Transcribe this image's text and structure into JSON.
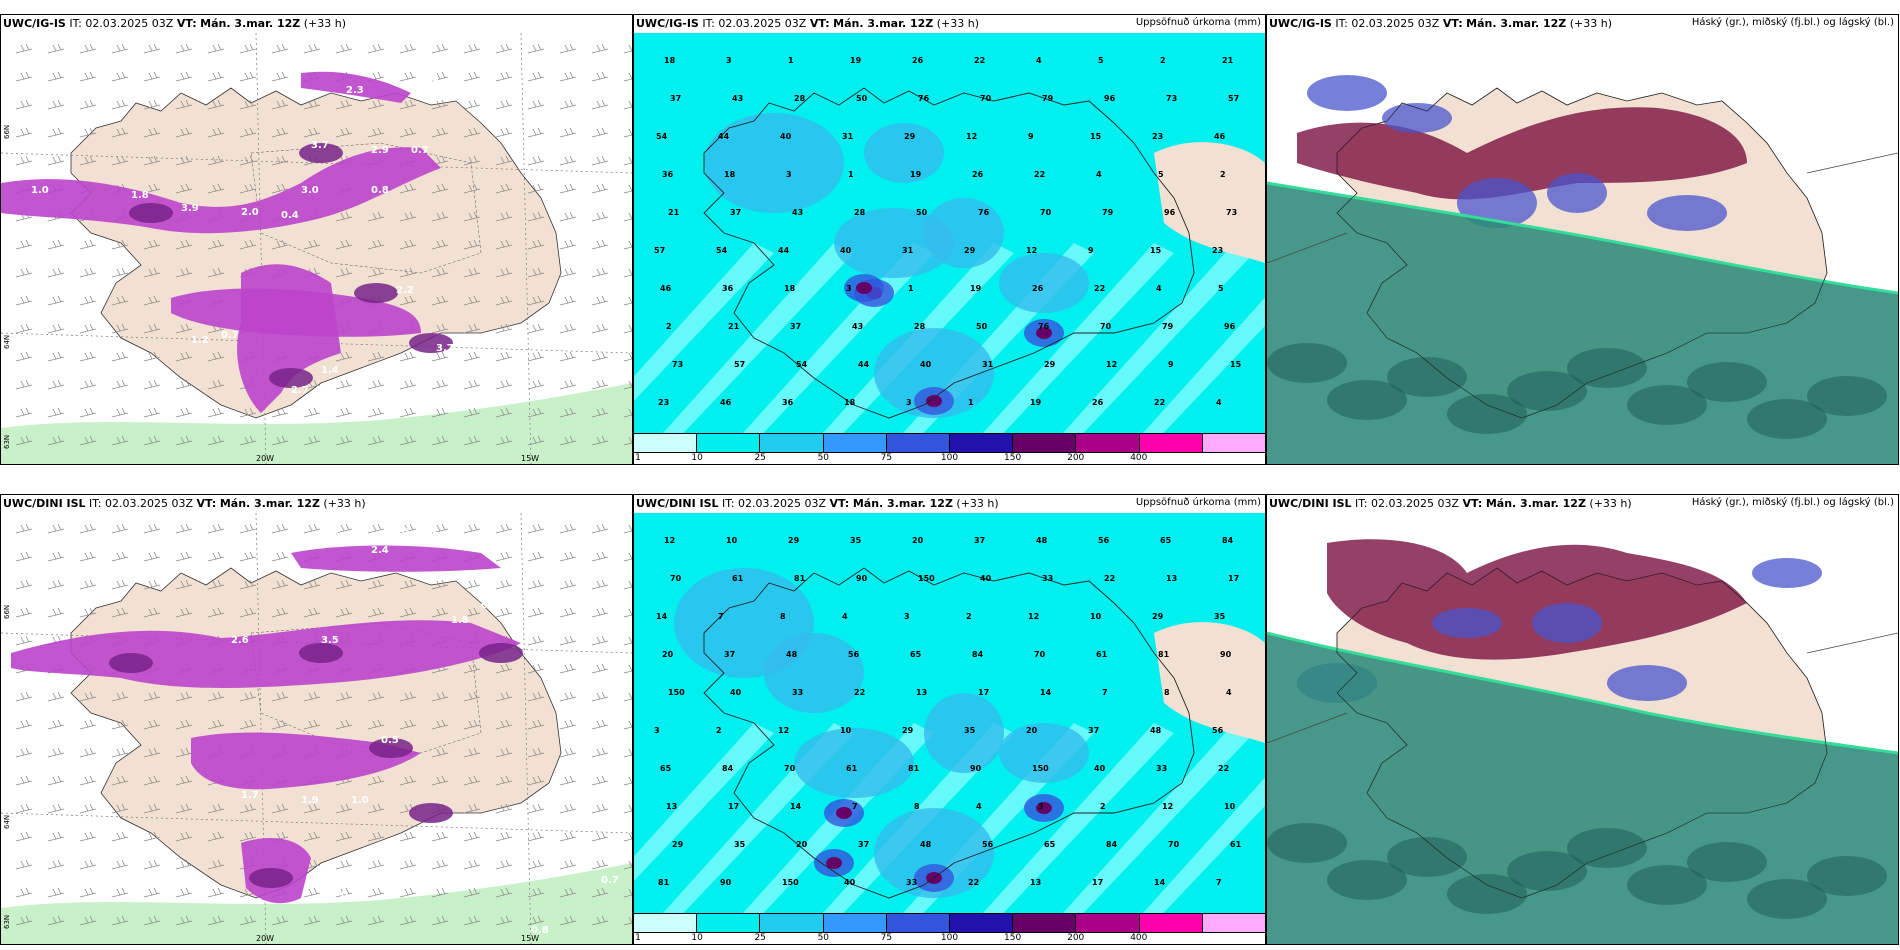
{
  "panels": [
    {
      "id": "p1",
      "model": "UWC/IG-IS",
      "it": "IT: 02.03.2025 03Z",
      "vt_label": "VT:",
      "vt": "Mán. 3.mar. 12Z",
      "lead": "(+33 h)",
      "right": "",
      "labels": [
        "0.3",
        "2.3",
        "2.9",
        "0.7",
        "3.7",
        "3.9",
        "2.0",
        "0.4",
        "2.2",
        "3.7",
        "1.4",
        "2.7",
        "1.8",
        "1.2",
        "0.7",
        "1.0",
        "3.0",
        "0.8"
      ]
    },
    {
      "id": "p2",
      "model": "UWC/IG-IS",
      "it": "IT: 02.03.2025 03Z",
      "vt_label": "VT:",
      "vt": "Mán. 3.mar. 12Z",
      "lead": "(+33 h)",
      "right": "Uppsöfnuð úrkoma (mm)",
      "labels": [
        "18",
        "3",
        "1",
        "19",
        "26",
        "22",
        "4",
        "5",
        "2",
        "21",
        "37",
        "43",
        "28",
        "50",
        "76",
        "70",
        "79",
        "96",
        "73",
        "57",
        "54",
        "44",
        "40",
        "31",
        "29",
        "12",
        "9",
        "15",
        "23",
        "46",
        "36"
      ]
    },
    {
      "id": "p3",
      "model": "UWC/IG-IS",
      "it": "IT: 02.03.2025 03Z",
      "vt_label": "VT:",
      "vt": "Mán. 3.mar. 12Z",
      "lead": "(+33 h)",
      "right": "Háský (gr.), miðský (fj.bl.) og lágský (bl.)",
      "labels": []
    },
    {
      "id": "p4",
      "model": "UWC/DINI ISL",
      "it": "IT: 02.03.2025 03Z",
      "vt_label": "VT:",
      "vt": "Mán. 3.mar. 12Z",
      "lead": "(+33 h)",
      "right": "",
      "labels": [
        "1.1",
        "1.0",
        "3.5",
        "2.4",
        "1.6",
        "1.0",
        "0.7",
        "1.8",
        "3.5",
        "2.6",
        "0.5",
        "1.7",
        "1.9",
        "1.0",
        "0.5",
        "0.7",
        "0.8"
      ]
    },
    {
      "id": "p5",
      "model": "UWC/DINI ISL",
      "it": "IT: 02.03.2025 03Z",
      "vt_label": "VT:",
      "vt": "Mán. 3.mar. 12Z",
      "lead": "(+33 h)",
      "right": "Uppsöfnuð úrkoma (mm)",
      "labels": [
        "12",
        "10",
        "29",
        "35",
        "20",
        "37",
        "48",
        "56",
        "65",
        "84",
        "70",
        "61",
        "81",
        "90",
        "150",
        "40",
        "33",
        "22",
        "13",
        "17",
        "14",
        "7",
        "8",
        "4",
        "3",
        "2"
      ]
    },
    {
      "id": "p6",
      "model": "UWC/DINI ISL",
      "it": "IT: 02.03.2025 03Z",
      "vt_label": "VT:",
      "vt": "Mán. 3.mar. 12Z",
      "lead": "(+33 h)",
      "right": "Háský (gr.), miðský (fj.bl.) og lágský (bl.)",
      "labels": []
    }
  ],
  "axis_labels": {
    "lat_top": "66N",
    "lat_bottom": "64N",
    "lat_far": "63N",
    "lon_a": "20W",
    "lon_b": "15W"
  },
  "colorbar": {
    "ticks": [
      "1",
      "10",
      "25",
      "50",
      "75",
      "100",
      "150",
      "200",
      "400"
    ],
    "colors": [
      "#ccffff",
      "#00eeee",
      "#22ccee",
      "#3399ff",
      "#3355dd",
      "#2211aa",
      "#660066",
      "#aa0088",
      "#ff00aa",
      "#ffaaff"
    ]
  },
  "colors": {
    "land": "#f2e0d2",
    "sea_white": "#ffffff",
    "precip_purple": "#bb44cc",
    "precip_dark": "#772288",
    "cyan": "#00f0f0",
    "cloud_low": "#2d8a7a",
    "cloud_high": "#7a1040",
    "cloud_mid": "#4a55cc"
  }
}
